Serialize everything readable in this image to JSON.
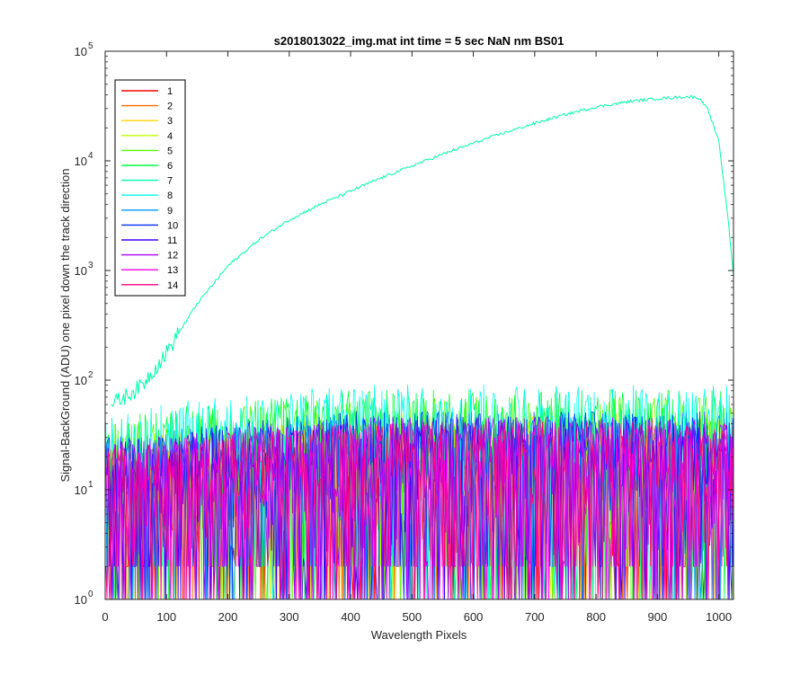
{
  "chart_data": {
    "type": "line",
    "title": "s2018013022_img.mat int time = 5 sec  NaN nm BS01",
    "xlabel": "Wavelength Pixels",
    "ylabel": "Signal-BackGround (ADU) one pixel down the track direction",
    "xlim": [
      0,
      1024
    ],
    "ylim": [
      1,
      100000
    ],
    "yscale": "log",
    "x_ticks": [
      "0",
      "100",
      "200",
      "300",
      "400",
      "500",
      "600",
      "700",
      "800",
      "900",
      "1000"
    ],
    "y_tick_exponents": [
      "0",
      "1",
      "2",
      "3",
      "4",
      "5"
    ],
    "y_tick_base": "10",
    "grid": false,
    "legend_position": "top-left",
    "series": [
      {
        "name": "1",
        "color": "#ff0000",
        "level": "noise",
        "noise_max": 40
      },
      {
        "name": "2",
        "color": "#ff6a00",
        "level": "noise",
        "noise_max": 40
      },
      {
        "name": "3",
        "color": "#ffd500",
        "level": "noise",
        "noise_max": 45
      },
      {
        "name": "4",
        "color": "#c0ff00",
        "level": "noise",
        "noise_max": 50
      },
      {
        "name": "5",
        "color": "#55ff00",
        "level": "noise",
        "noise_max": 70
      },
      {
        "name": "6",
        "color": "#00ff40",
        "level": "noise",
        "noise_max": 80
      },
      {
        "name": "7",
        "color": "#00ffaa",
        "level": "signal",
        "x": [
          10,
          30,
          60,
          100,
          150,
          200,
          250,
          300,
          350,
          400,
          450,
          500,
          550,
          600,
          650,
          700,
          750,
          800,
          850,
          900,
          950,
          965,
          980,
          1000,
          1015,
          1024
        ],
        "y": [
          60,
          70,
          90,
          180,
          500,
          1100,
          1900,
          2900,
          4000,
          5300,
          7000,
          9000,
          11500,
          14500,
          18000,
          22000,
          26500,
          31000,
          34500,
          37000,
          38500,
          38000,
          32000,
          15000,
          3000,
          900
        ]
      },
      {
        "name": "8",
        "color": "#00ffea",
        "level": "noise",
        "noise_max": 90
      },
      {
        "name": "9",
        "color": "#0095ff",
        "level": "noise",
        "noise_max": 50
      },
      {
        "name": "10",
        "color": "#0030ff",
        "level": "noise",
        "noise_max": 50
      },
      {
        "name": "11",
        "color": "#4000ff",
        "level": "noise",
        "noise_max": 45
      },
      {
        "name": "12",
        "color": "#aa00ff",
        "level": "noise",
        "noise_max": 45
      },
      {
        "name": "13",
        "color": "#ff00ea",
        "level": "noise",
        "noise_max": 40
      },
      {
        "name": "14",
        "color": "#ff0080",
        "level": "noise",
        "noise_max": 40
      }
    ]
  }
}
